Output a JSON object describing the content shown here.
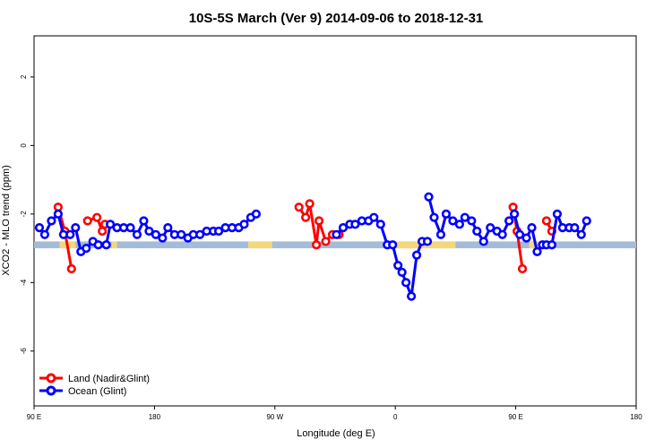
{
  "chart_data": {
    "type": "line",
    "title": "10S-5S March (Ver 9)   2014-09-06 to 2018-12-31",
    "xlabel": "Longitude (deg E)",
    "ylabel": "XCO2 - MLO trend (ppm)",
    "xlim": [
      90,
      540
    ],
    "ylim": [
      -7.6,
      3.2
    ],
    "xticks": [
      {
        "value": 90,
        "label": "90 E"
      },
      {
        "value": 180,
        "label": "180"
      },
      {
        "value": 270,
        "label": "90 W"
      },
      {
        "value": 360,
        "label": "0"
      },
      {
        "value": 450,
        "label": "90 E"
      },
      {
        "value": 540,
        "label": "180"
      }
    ],
    "yticks": [
      {
        "value": 2,
        "label": "2"
      },
      {
        "value": 0,
        "label": "0"
      },
      {
        "value": -2,
        "label": "-2"
      },
      {
        "value": -4,
        "label": "-4"
      },
      {
        "value": -6,
        "label": "-6"
      }
    ],
    "legend_position": "bottom-left",
    "land_strip": {
      "y_range": [
        -3.0,
        -2.8
      ],
      "ocean_color": "#a4bcd8",
      "land_color": "#f4d77a",
      "land_segrments_note": "",
      "land_segments": [
        [
          109,
          121
        ],
        [
          250,
          268
        ],
        [
          460,
          474
        ],
        [
          358,
          405
        ],
        [
          148,
          152
        ]
      ]
    },
    "series": [
      {
        "name": "Land (Nadir&Glint)",
        "color": "#ff0000",
        "segments": [
          [
            [
              108,
              -1.8
            ],
            [
              113,
              -2.5
            ],
            [
              118,
              -3.6
            ]
          ],
          [
            [
              130,
              -2.2
            ],
            [
              137,
              -2.1
            ],
            [
              141,
              -2.5
            ],
            [
              143,
              -2.3
            ]
          ],
          [
            [
              288,
              -1.8
            ],
            [
              293,
              -2.1
            ],
            [
              296,
              -1.7
            ],
            [
              301,
              -2.9
            ],
            [
              303,
              -2.2
            ],
            [
              308,
              -2.8
            ],
            [
              313,
              -2.6
            ],
            [
              318,
              -2.6
            ]
          ],
          [
            [
              448,
              -1.8
            ],
            [
              451,
              -2.5
            ],
            [
              455,
              -3.6
            ]
          ],
          [
            [
              473,
              -2.2
            ],
            [
              477,
              -2.5
            ]
          ]
        ]
      },
      {
        "name": "Ocean (Glint)",
        "color": "#0000ff",
        "segments": [
          [
            [
              94,
              -2.4
            ],
            [
              98,
              -2.6
            ],
            [
              103,
              -2.2
            ],
            [
              108,
              -2.0
            ],
            [
              112,
              -2.6
            ],
            [
              117,
              -2.6
            ]
          ],
          [
            [
              121,
              -2.4
            ],
            [
              125,
              -3.1
            ],
            [
              129,
              -3.0
            ],
            [
              134,
              -2.8
            ],
            [
              138,
              -2.9
            ]
          ],
          [
            [
              144,
              -2.9
            ],
            [
              147,
              -2.3
            ],
            [
              152,
              -2.4
            ],
            [
              157,
              -2.4
            ],
            [
              162,
              -2.4
            ],
            [
              167,
              -2.6
            ],
            [
              172,
              -2.2
            ],
            [
              176,
              -2.5
            ],
            [
              181,
              -2.6
            ],
            [
              186,
              -2.7
            ],
            [
              190,
              -2.4
            ],
            [
              195,
              -2.6
            ],
            [
              200,
              -2.6
            ],
            [
              205,
              -2.7
            ],
            [
              209,
              -2.6
            ],
            [
              214,
              -2.6
            ],
            [
              219,
              -2.5
            ],
            [
              224,
              -2.5
            ],
            [
              228,
              -2.5
            ],
            [
              233,
              -2.4
            ],
            [
              238,
              -2.4
            ],
            [
              243,
              -2.4
            ],
            [
              247,
              -2.3
            ],
            [
              252,
              -2.1
            ],
            [
              256,
              -2.0
            ]
          ],
          [
            [
              316,
              -2.6
            ],
            [
              321,
              -2.4
            ],
            [
              326,
              -2.3
            ],
            [
              330,
              -2.3
            ],
            [
              335,
              -2.2
            ],
            [
              340,
              -2.2
            ],
            [
              344,
              -2.1
            ],
            [
              349,
              -2.3
            ],
            [
              354,
              -2.9
            ],
            [
              358,
              -2.9
            ],
            [
              362,
              -3.5
            ],
            [
              365,
              -3.7
            ],
            [
              368,
              -4.0
            ],
            [
              372,
              -4.4
            ],
            [
              376,
              -3.2
            ],
            [
              380,
              -2.8
            ],
            [
              384,
              -2.8
            ]
          ],
          [
            [
              385,
              -1.5
            ],
            [
              389,
              -2.1
            ],
            [
              394,
              -2.6
            ],
            [
              398,
              -2.0
            ],
            [
              403,
              -2.2
            ],
            [
              408,
              -2.3
            ],
            [
              412,
              -2.1
            ],
            [
              417,
              -2.2
            ],
            [
              421,
              -2.5
            ],
            [
              426,
              -2.8
            ],
            [
              431,
              -2.4
            ],
            [
              436,
              -2.5
            ],
            [
              440,
              -2.6
            ],
            [
              445,
              -2.2
            ],
            [
              449,
              -2.0
            ],
            [
              453,
              -2.6
            ],
            [
              458,
              -2.7
            ],
            [
              462,
              -2.4
            ],
            [
              466,
              -3.1
            ],
            [
              470,
              -2.9
            ],
            [
              473,
              -2.9
            ]
          ],
          [
            [
              477,
              -2.9
            ],
            [
              481,
              -2.0
            ],
            [
              485,
              -2.4
            ],
            [
              490,
              -2.4
            ],
            [
              494,
              -2.4
            ],
            [
              499,
              -2.6
            ],
            [
              503,
              -2.2
            ]
          ]
        ]
      }
    ]
  }
}
